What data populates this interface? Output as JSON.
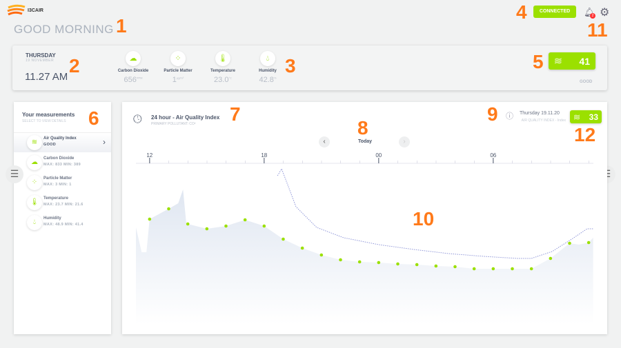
{
  "app": {
    "brand": "I3CAIR",
    "greeting": "GOOD MORNING",
    "status": "CONNECTED",
    "notification_count": "2"
  },
  "summary": {
    "day": "THURSDAY",
    "date": "19 NOVEMBER",
    "time": "11.27 AM",
    "metrics": [
      {
        "label": "Carbon Dioxide",
        "value": "656",
        "unit": "PPM",
        "icon": "cloud-icon"
      },
      {
        "label": "Particle Matter",
        "value": "1",
        "unit": "µg/m³",
        "icon": "particles-icon"
      },
      {
        "label": "Temperature",
        "value": "23.0",
        "unit": "°C",
        "icon": "thermometer-icon"
      },
      {
        "label": "Humidity",
        "value": "42.8",
        "unit": "%",
        "icon": "droplet-icon"
      }
    ],
    "aqi_value": "41",
    "aqi_label": "GOOD"
  },
  "sidebar": {
    "title": "Your measurements",
    "subtitle": "SELECT TO VIEW DETAILS",
    "items": [
      {
        "label": "Air Quality Index",
        "sub": "GOOD",
        "icon": "wind-icon",
        "selected": true
      },
      {
        "label": "Carbon Dioxide",
        "sub": "MAX: 833    MIN: 389",
        "icon": "cloud-icon"
      },
      {
        "label": "Particle Matter",
        "sub": "MAX: 3    MIN: 1",
        "icon": "particles-icon"
      },
      {
        "label": "Temperature",
        "sub": "MAX: 23.7    MIN: 21.6",
        "icon": "thermometer-icon"
      },
      {
        "label": "Humidity",
        "sub": "MAX: 48.9    MIN: 41.4",
        "icon": "droplet-icon"
      }
    ]
  },
  "panel": {
    "title": "24 hour - Air Quality Index",
    "subtitle": "PRIMARY POLLUTANT: CO²",
    "nav_label": "Today",
    "date": "Thursday 19.11.20",
    "legend": "AIR QUALITY INDEX  -  Index",
    "aqi_value": "33"
  },
  "annotations": [
    "1",
    "2",
    "3",
    "4",
    "5",
    "6",
    "7",
    "8",
    "9",
    "10",
    "11",
    "12"
  ],
  "colors": {
    "accent": "#9be000",
    "area": "#dfe6f1",
    "dots": "#9be000",
    "dotted": "#8f96d8",
    "badge": "#f33"
  },
  "chart_data": {
    "type": "area",
    "x_ticks": [
      "12",
      "18",
      "00",
      "06"
    ],
    "x_range": [
      "11:17",
      "11:14"
    ],
    "ylim": [
      0,
      115
    ],
    "grid": false,
    "series": [
      {
        "type": "area",
        "points": [
          [
            "11:17",
            70
          ],
          [
            "11:35",
            52
          ],
          [
            "11:50",
            52
          ],
          [
            "12:00",
            76
          ],
          [
            "13:00",
            83.5
          ],
          [
            "13:30",
            87.5
          ],
          [
            "13:45",
            97.5
          ],
          [
            "13:55",
            73.5
          ],
          [
            "14:00",
            72.5
          ],
          [
            "15:00",
            69
          ],
          [
            "16:00",
            71
          ],
          [
            "17:00",
            75.5
          ],
          [
            "18:00",
            71
          ],
          [
            "19:00",
            61.5
          ],
          [
            "20:00",
            55
          ],
          [
            "21:00",
            50
          ],
          [
            "22:00",
            46.5
          ],
          [
            "23:00",
            45
          ],
          [
            "00:00",
            44.5
          ],
          [
            "01:00",
            43.5
          ],
          [
            "02:00",
            43
          ],
          [
            "03:00",
            42
          ],
          [
            "04:00",
            41.5
          ],
          [
            "05:00",
            40
          ],
          [
            "06:00",
            40
          ],
          [
            "07:00",
            40
          ],
          [
            "08:00",
            40
          ],
          [
            "09:00",
            47.5
          ],
          [
            "10:00",
            58.5
          ],
          [
            "10:30",
            57.5
          ],
          [
            "11:00",
            59
          ],
          [
            "11:14",
            62.5
          ]
        ]
      },
      {
        "type": "dots",
        "points": [
          [
            "12:00",
            76
          ],
          [
            "13:00",
            83.5
          ],
          [
            "14:00",
            72.5
          ],
          [
            "15:00",
            69
          ],
          [
            "16:00",
            71
          ],
          [
            "17:00",
            75.5
          ],
          [
            "18:00",
            71
          ],
          [
            "19:00",
            61.5
          ],
          [
            "20:00",
            55
          ],
          [
            "21:00",
            50
          ],
          [
            "22:00",
            46.5
          ],
          [
            "23:00",
            45
          ],
          [
            "00:00",
            44.5
          ],
          [
            "01:00",
            43.5
          ],
          [
            "02:00",
            43
          ],
          [
            "03:00",
            42
          ],
          [
            "04:00",
            41.5
          ],
          [
            "05:00",
            40
          ],
          [
            "06:00",
            40
          ],
          [
            "07:00",
            40
          ],
          [
            "08:00",
            40
          ],
          [
            "09:00",
            47.5
          ],
          [
            "10:00",
            58.5
          ],
          [
            "11:00",
            59
          ]
        ]
      },
      {
        "type": "dotted-line",
        "points": [
          [
            "18:42",
            107.5
          ],
          [
            "18:55",
            112.5
          ],
          [
            "19:40",
            85
          ],
          [
            "20:45",
            70
          ],
          [
            "22:10",
            62.5
          ],
          [
            "00:00",
            57.5
          ],
          [
            "01:50",
            54
          ],
          [
            "03:40",
            51
          ],
          [
            "05:30",
            49
          ],
          [
            "07:15",
            47.5
          ],
          [
            "08:00",
            47.5
          ],
          [
            "09:05",
            52.5
          ],
          [
            "10:10",
            62
          ],
          [
            "10:55",
            69
          ],
          [
            "11:14",
            69
          ]
        ]
      }
    ]
  }
}
